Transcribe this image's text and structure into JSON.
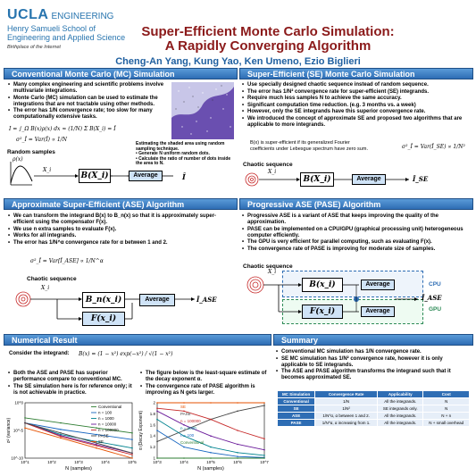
{
  "header": {
    "ucla": "UCLA",
    "engineering": "ENGINEERING",
    "school_line1": "Henry Samueli School of",
    "school_line2": "Engineering and Applied Science",
    "birthplace": "Birthplace of the Internet",
    "title_line1": "Super-Efficient Monte Carlo Simulation:",
    "title_line2": "A Rapidly Converging Algorithm",
    "authors": "Cheng-An Yang, Kung Yao, Ken Umeno, Ezio Biglieri"
  },
  "mc": {
    "heading": "Conventional Monte Carlo (MC) Simulation",
    "bullets": [
      "Many complex engineering and scientific problems involve multivariate integrations.",
      "Monte Carlo (MC) simulation can be used to estimate the integrations that are not tractable using other methods.",
      "The error has 1/N convergence rate; too slow for many computationally extensive tasks."
    ],
    "eq1": "I = ∫_Ω B(x)ρ(x) dx ≈ (1/N) Σ B(X_i) = Î",
    "eq2": "σ²_Î = Var(Î) ∝ 1/N",
    "note_title": "Estimating the shaded area using random sampling technique.",
    "note_b1": "Generate N uniform random dots.",
    "note_b2": "Calculate the ratio of number of dots inside the area to N.",
    "random_samples": "Random samples",
    "rho": "ρ(x)",
    "xi": "X_i",
    "block": "B(X_i)",
    "average": "Average",
    "out": "Î"
  },
  "se": {
    "heading": "Super-Efficient (SE) Monte Carlo Simulation",
    "bullets": [
      "Use specially designed chaotic sequence instead of random sequence.",
      "The error has 1/N² convergence rate for super-efficient (SE) integrands.",
      "Require much less samples N to achieve the same accuracy.",
      "Significant computation time reduction. (e.g. 3 months vs. a week)",
      "However, only the SE integrands have this superior convergence rate.",
      "We introduced the concept of approximate SE and proposed two algorithms that are applicable to more integrands."
    ],
    "desc": "B(x) is super-efficient if its generalized Fourier coefficients under Lebesgue spectrum have zero sum.",
    "eq": "σ²_Î = Var(Î_SE) ∝ 1/N²",
    "chaotic": "Chaotic sequence",
    "xi": "X_i",
    "block": "B(X_i)",
    "average": "Average",
    "out": "Î_SE"
  },
  "ase": {
    "heading": "Approximate Super-Efficient (ASE) Algorithm",
    "bullets": [
      "We can transform the integrand B(x) to B_n(x) so that it is approximately super-efficient using the compensator F(x).",
      "We use n extra samples to evaluate F(x).",
      "Works for all integrands.",
      "The error has 1/N^α convergence rate for α between 1 and 2."
    ],
    "eq": "σ²_Î = Var[Î_ASE] ∝ 1/N^α",
    "chaotic": "Chaotic sequence",
    "xi": "X_i",
    "block1": "B_n(x_i)",
    "block2": "F(x_i)",
    "average1": "Average",
    "average2": "Average",
    "out": "Î_ASE"
  },
  "pase": {
    "heading": "Progressive ASE (PASE) Algorithm",
    "bullets": [
      "Progressive ASE is a variant of ASE that keeps improving the quality of the approximation.",
      "PASE can be implemented on a CPU/GPU (graphical processing unit) heterogeneous computer efficiently.",
      "The GPU is very efficient for parallel computing, such as evaluating F(x).",
      "The convergence rate of PASE is improving for moderate size of samples."
    ],
    "chaotic": "Chaotic sequence",
    "xi": "X_i",
    "block1": "B(x_i)",
    "block2": "F(x_i)",
    "average1": "Average",
    "average2": "Average",
    "cpu": "CPU",
    "gpu": "GPU",
    "out": "Î_ASE"
  },
  "numerical": {
    "heading": "Numerical Result",
    "consider": "Consider the integrand:",
    "integrand": "B(x) = (1 − x²) exp(−x²) / √(1 − x²)",
    "bullets_left": [
      "Both the ASE and PASE has superior performance compare to conventional MC.",
      "The SE simulation here is for reference only; it is not achievable in practice."
    ],
    "bullets_right": [
      "The figure below is the least-square estimate of the decay exponent α.",
      "The convergence rate of PASE algorithm is improving as N gets larger."
    ]
  },
  "chart_data": [
    {
      "type": "line",
      "xlabel": "N (samples)",
      "ylabel": "σ² (variance)",
      "x": [
        100,
        1000,
        10000,
        100000
      ],
      "xticks": [
        "10^1",
        "10^2",
        "10^3",
        "10^4",
        "10^5"
      ],
      "yticks": [
        "10^0",
        "10^-5",
        "10^-10"
      ],
      "log_scale": true,
      "series": [
        {
          "name": "Conventional",
          "values": [
            0.001,
            0.0001,
            1e-05,
            1e-06
          ],
          "color": "#2e7d32"
        },
        {
          "name": "n = 100",
          "values": [
            0.0001,
            5e-06,
            5e-07,
            5e-08
          ],
          "color": "#1565c0"
        },
        {
          "name": "n = 1000",
          "values": [
            0.0001,
            5e-07,
            2e-08,
            1e-09
          ],
          "color": "#00838f"
        },
        {
          "name": "n = 10000",
          "values": [
            0.0001,
            3e-07,
            5e-09,
            1e-10
          ],
          "color": "#6a1b9a"
        },
        {
          "name": "n = 100000",
          "values": [
            0.0001,
            2e-07,
            3e-09,
            5e-11
          ],
          "color": "#c62828"
        },
        {
          "name": "PASE",
          "values": [
            0.0001,
            1e-06,
            1e-08,
            1e-10
          ],
          "color": "#444444"
        },
        {
          "name": "SE",
          "values": [
            1e-05,
            1e-07,
            1e-09,
            1e-11
          ],
          "color": "#e65100"
        }
      ],
      "legend": [
        "Conventional",
        "n = 100",
        "n = 1000",
        "n = 10000",
        "n = 100000",
        "PASE",
        "SE"
      ]
    },
    {
      "type": "line",
      "xlabel": "N (samples)",
      "ylabel": "α (Decay Exponent)",
      "ylim": [
        1,
        2
      ],
      "yticks": [
        "2",
        "1.8",
        "1.6",
        "1.4",
        "1.2",
        "1"
      ],
      "xticks": [
        "10^3",
        "10^4",
        "10^5",
        "10^6",
        "10^7"
      ],
      "x": [
        1000,
        10000,
        100000,
        1000000,
        10000000
      ],
      "log_scale_x": true,
      "series": [
        {
          "name": "SE",
          "values": [
            2.0,
            2.0,
            2.0,
            2.0,
            2.0
          ],
          "color": "#e65100"
        },
        {
          "name": "PASE",
          "values": [
            1.3,
            1.5,
            1.7,
            1.85,
            1.95
          ],
          "color": "#444444"
        },
        {
          "name": "n = 100000",
          "values": [
            1.9,
            1.85,
            1.7,
            1.5,
            1.35
          ],
          "color": "#c62828"
        },
        {
          "name": "n = 10000",
          "values": [
            1.85,
            1.6,
            1.4,
            1.25,
            1.15
          ],
          "color": "#6a1b9a"
        },
        {
          "name": "n = 1000",
          "values": [
            1.7,
            1.4,
            1.2,
            1.1,
            1.05
          ],
          "color": "#00838f"
        },
        {
          "name": "n = 100",
          "values": [
            1.5,
            1.2,
            1.1,
            1.03,
            1.01
          ],
          "color": "#1565c0"
        },
        {
          "name": "Conventional",
          "values": [
            1.0,
            1.0,
            1.0,
            1.0,
            1.0
          ],
          "color": "#2e7d32"
        }
      ],
      "labels": [
        "SE",
        "PASE",
        "n = 100000",
        "n = 1000",
        "n = 100",
        "Conventional"
      ]
    }
  ],
  "summary": {
    "heading": "Summary",
    "bullets": [
      "Conventional MC simulation has 1/N convergence rate.",
      "SE MC simulation has 1/N² convergence rate, however it is only applicable to SE integrands.",
      "The ASE and PASE algorithm transforms the integrand such that it becomes approximated SE."
    ],
    "table": {
      "headers": [
        "MC Simulation",
        "Convergence Rate",
        "Applicability",
        "Cost"
      ],
      "rows": [
        [
          "Conventional",
          "1/N",
          "All the integrands.",
          "N"
        ],
        [
          "SE",
          "1/N²",
          "SE integrands only.",
          "N"
        ],
        [
          "ASE",
          "1/N^α, α between 1 and 2.",
          "All the integrands.",
          "N + n"
        ],
        [
          "PASE",
          "1/N^α, α increasing from 1.",
          "All the integrands.",
          "N + small overhead"
        ]
      ]
    }
  }
}
